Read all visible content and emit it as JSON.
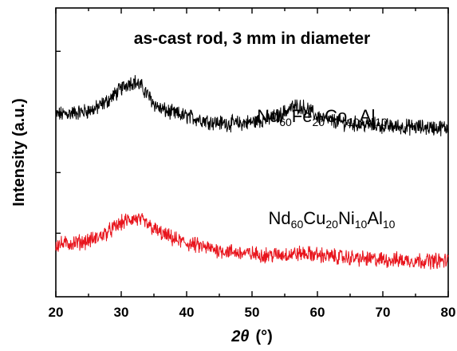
{
  "chart_data": {
    "type": "line",
    "title": "as-cast rod, 3 mm in diameter",
    "xlabel_symbol": "2θ",
    "xlabel_unit": "(°)",
    "ylabel": "Intensity (a.u.)",
    "xlim": [
      20,
      80
    ],
    "x_ticks": [
      "20",
      "30",
      "40",
      "50",
      "60",
      "70",
      "80"
    ],
    "y_ticks_labeled": false,
    "grid": false,
    "legend": "none",
    "series": [
      {
        "name_parts": [
          {
            "text": "Nd",
            "sub": "60"
          },
          {
            "text": "Fe",
            "sub": "20"
          },
          {
            "text": "Co",
            "sub": "10"
          },
          {
            "text": "Al",
            "sub": "10"
          }
        ],
        "color": "#000000",
        "x": [
          20,
          22,
          24,
          26,
          28,
          29,
          30,
          31,
          32,
          33,
          34,
          35,
          36,
          38,
          40,
          42,
          44,
          46,
          48,
          50,
          52,
          54,
          55,
          56,
          57,
          58,
          59,
          60,
          62,
          65,
          68,
          71,
          74,
          77,
          80
        ],
        "y": [
          0.63,
          0.635,
          0.64,
          0.65,
          0.68,
          0.7,
          0.72,
          0.74,
          0.745,
          0.73,
          0.7,
          0.67,
          0.65,
          0.635,
          0.625,
          0.615,
          0.605,
          0.6,
          0.6,
          0.605,
          0.615,
          0.625,
          0.64,
          0.655,
          0.66,
          0.655,
          0.64,
          0.625,
          0.61,
          0.6,
          0.595,
          0.59,
          0.588,
          0.586,
          0.585
        ]
      },
      {
        "name_parts": [
          {
            "text": "Nd",
            "sub": "60"
          },
          {
            "text": "Cu",
            "sub": "20"
          },
          {
            "text": "Ni",
            "sub": "10"
          },
          {
            "text": "Al",
            "sub": "10"
          }
        ],
        "color": "#e8141c",
        "x": [
          20,
          22,
          24,
          26,
          28,
          29,
          30,
          31,
          32,
          33,
          34,
          35,
          36,
          38,
          40,
          42,
          44,
          46,
          48,
          50,
          52,
          54,
          56,
          58,
          60,
          62,
          65,
          68,
          71,
          74,
          77,
          80
        ],
        "y": [
          0.18,
          0.185,
          0.19,
          0.2,
          0.225,
          0.24,
          0.255,
          0.265,
          0.27,
          0.265,
          0.25,
          0.235,
          0.22,
          0.2,
          0.185,
          0.175,
          0.165,
          0.158,
          0.152,
          0.148,
          0.145,
          0.145,
          0.148,
          0.15,
          0.145,
          0.14,
          0.135,
          0.13,
          0.128,
          0.126,
          0.125,
          0.124
        ]
      }
    ]
  }
}
